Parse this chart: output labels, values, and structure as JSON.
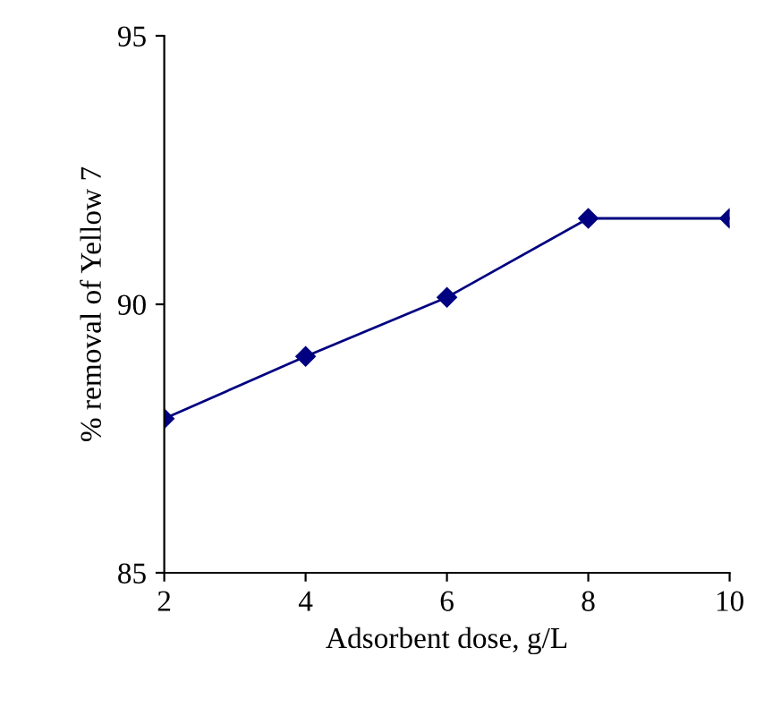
{
  "chart_data": {
    "type": "line",
    "xlabel": "Adsorbent dose, g/L",
    "ylabel": "% removal of Yellow 7",
    "x": [
      2,
      4,
      6,
      8,
      10
    ],
    "series": [
      {
        "color": "#000080",
        "values": [
          87.87,
          89.03,
          90.13,
          91.6,
          91.6
        ]
      }
    ],
    "xlim": [
      2,
      10
    ],
    "xticks": [
      2,
      4,
      6,
      8,
      10
    ],
    "ylim": [
      85,
      95
    ],
    "yticks": [
      85,
      90,
      95
    ],
    "marker": "diamond",
    "line_style": "solid",
    "grid": false,
    "legend": false
  }
}
